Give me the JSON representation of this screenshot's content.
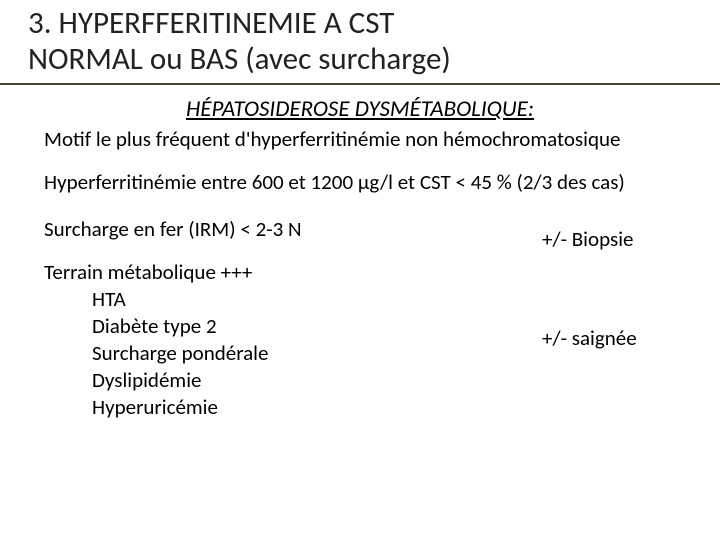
{
  "colors": {
    "underline": "#4a442c",
    "background": "#ffffff",
    "text": "#000000"
  },
  "title_line1": "3. HYPERFFERITINEMIE A CST",
  "title_line2": "NORMAL ou BAS (avec surcharge)",
  "subtitle": "HÉPATOSIDEROSE DYSMÉTABOLIQUE:",
  "motif": "Motif le plus fréquent d'hyperferritinémie non hémochromatosique",
  "range": "Hyperferritinémie entre 600 et 1200 µg/l et CST < 45 % (2/3 des cas)",
  "surcharge": "Surcharge en fer (IRM) < 2-3 N",
  "biopsie": "+/- Biopsie",
  "terrain_header": "Terrain métabolique +++",
  "terrain_items": [
    "HTA",
    "Diabète type 2",
    "Surcharge pondérale",
    "Dyslipidémie",
    "Hyperuricémie"
  ],
  "saignee": "+/- saignée"
}
